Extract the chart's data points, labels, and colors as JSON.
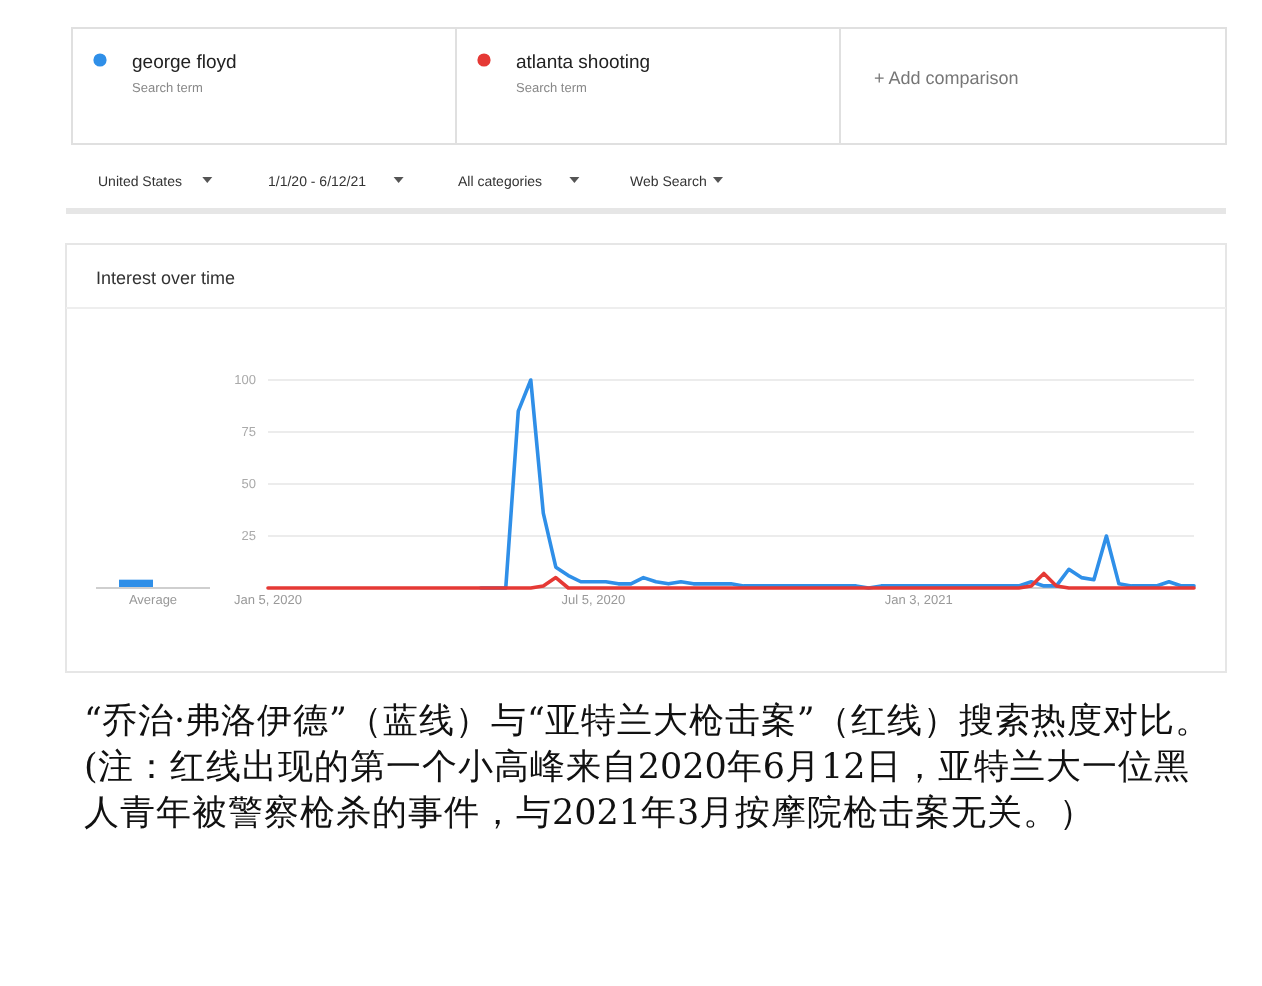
{
  "chart_data": [
    {
      "type": "bar",
      "title": "Interest over time",
      "categories": [
        "Average"
      ],
      "series": [
        {
          "color": "#2f8fe8",
          "values": [
            4
          ]
        },
        {
          "color": "#e53935",
          "values": [
            0
          ]
        }
      ],
      "ylim": [
        0,
        100
      ],
      "tick_labels": "x"
    },
    {
      "type": "line",
      "x": [
        "2020-01-05",
        "2020-01-12",
        "2020-01-19",
        "2020-01-26",
        "2020-02-02",
        "2020-02-09",
        "2020-02-16",
        "2020-02-23",
        "2020-03-01",
        "2020-03-08",
        "2020-03-15",
        "2020-03-22",
        "2020-03-29",
        "2020-04-05",
        "2020-04-12",
        "2020-04-19",
        "2020-04-26",
        "2020-05-03",
        "2020-05-10",
        "2020-05-17",
        "2020-05-24",
        "2020-05-31",
        "2020-06-07",
        "2020-06-14",
        "2020-06-21",
        "2020-06-28",
        "2020-07-05",
        "2020-07-12",
        "2020-07-19",
        "2020-07-26",
        "2020-08-02",
        "2020-08-09",
        "2020-08-16",
        "2020-08-23",
        "2020-08-30",
        "2020-09-06",
        "2020-09-13",
        "2020-09-20",
        "2020-09-27",
        "2020-10-04",
        "2020-10-11",
        "2020-10-18",
        "2020-10-25",
        "2020-11-01",
        "2020-11-08",
        "2020-11-15",
        "2020-11-22",
        "2020-11-29",
        "2020-12-06",
        "2020-12-13",
        "2020-12-20",
        "2020-12-27",
        "2021-01-03",
        "2021-01-10",
        "2021-01-17",
        "2021-01-24",
        "2021-01-31",
        "2021-02-07",
        "2021-02-14",
        "2021-02-21",
        "2021-02-28",
        "2021-03-07",
        "2021-03-14",
        "2021-03-21",
        "2021-03-28",
        "2021-04-04",
        "2021-04-11",
        "2021-04-18",
        "2021-04-25",
        "2021-05-02",
        "2021-05-09",
        "2021-05-16",
        "2021-05-23",
        "2021-05-30",
        "2021-06-06"
      ],
      "series": [
        {
          "name": "george floyd",
          "color": "#2f8fe8",
          "values": [
            null,
            null,
            null,
            null,
            null,
            null,
            null,
            null,
            null,
            null,
            null,
            null,
            null,
            null,
            null,
            null,
            null,
            0,
            0,
            0,
            85,
            100,
            36,
            10,
            6,
            3,
            3,
            3,
            2,
            2,
            5,
            3,
            2,
            3,
            2,
            2,
            2,
            2,
            1,
            1,
            1,
            1,
            1,
            1,
            1,
            1,
            1,
            1,
            0,
            1,
            1,
            1,
            1,
            1,
            1,
            1,
            1,
            1,
            1,
            1,
            1,
            3,
            1,
            1,
            9,
            5,
            4,
            25,
            2,
            1,
            1,
            1,
            3,
            1,
            1
          ]
        },
        {
          "name": "atlanta shooting",
          "color": "#e53935",
          "values": [
            0,
            0,
            0,
            0,
            0,
            0,
            0,
            0,
            0,
            0,
            0,
            0,
            0,
            0,
            0,
            0,
            0,
            0,
            0,
            0,
            0,
            0,
            1,
            5,
            0,
            0,
            0,
            0,
            0,
            0,
            0,
            0,
            0,
            0,
            0,
            0,
            0,
            0,
            0,
            0,
            0,
            0,
            0,
            0,
            0,
            0,
            0,
            0,
            0,
            0,
            0,
            0,
            0,
            0,
            0,
            0,
            0,
            0,
            0,
            0,
            0,
            1,
            7,
            1,
            0,
            0,
            0,
            0,
            0,
            0,
            0,
            0,
            0,
            0,
            0
          ]
        }
      ],
      "xlim": [
        "2020-01-05",
        "2021-06-06"
      ],
      "xticks": [
        {
          "value": "2020-01-05",
          "label": "Jan 5, 2020"
        },
        {
          "value": "2020-07-05",
          "label": "Jul 5, 2020"
        },
        {
          "value": "2021-01-03",
          "label": "Jan 3, 2021"
        }
      ],
      "ylim": [
        0,
        100
      ],
      "yticks": [
        25,
        50,
        75,
        100
      ],
      "grid": "y",
      "legend": "top",
      "line_style": "solid",
      "annotations": [
        "Search term",
        "Search term",
        "+  Add comparison",
        "United States",
        "1/1/20 - 6/12/21",
        "All categories",
        "Web Search",
        "“乔治·弗洛伊德”（蓝线）与“亚特兰大枪击案”（红线）搜索热度对比。(注：红线出现的第一个小高峰来自2020年6月12日，亚特兰大一位黑人青年被警察枪杀的事件，与2021年3月按摩院枪击案无关。）"
      ]
    }
  ]
}
